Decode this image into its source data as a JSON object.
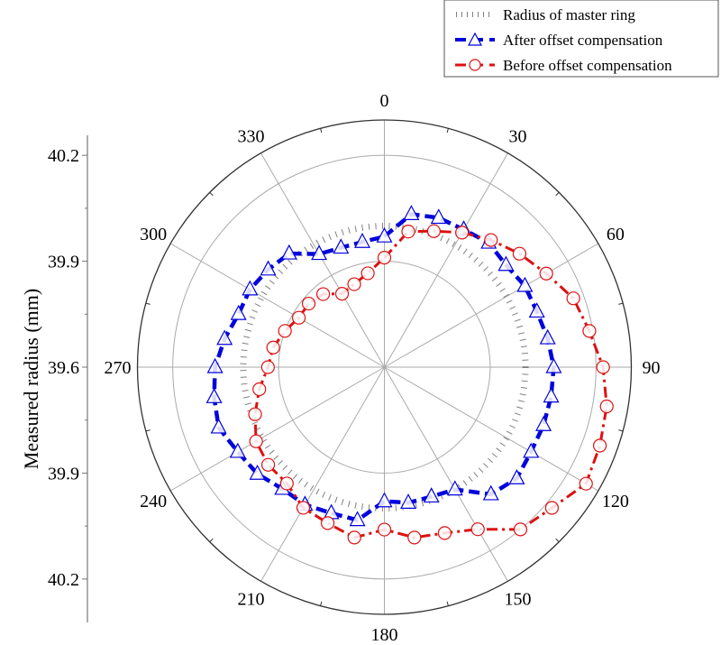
{
  "chart_data": {
    "type": "polar-line",
    "ylabel": "Measured radius (mm)",
    "radial_range": [
      39.6,
      40.3
    ],
    "radial_ticks": [
      39.6,
      39.9,
      40.2
    ],
    "radial_tick_labels": [
      "40.2",
      "39.9",
      "39.6",
      "39.9",
      "40.2"
    ],
    "angle_direction": "clockwise",
    "angle_zero": "top",
    "angle_ticks": [
      0,
      30,
      60,
      90,
      120,
      150,
      180,
      210,
      240,
      270,
      300,
      330
    ],
    "angle_tick_labels": [
      "0",
      "30",
      "60",
      "90",
      "120",
      "150",
      "180",
      "210",
      "240",
      "270",
      "300",
      "330"
    ],
    "grid": true,
    "legend_position": "top-right",
    "angles": [
      0,
      10,
      20,
      30,
      40,
      50,
      60,
      70,
      80,
      90,
      100,
      110,
      120,
      130,
      140,
      150,
      160,
      170,
      180,
      190,
      200,
      210,
      220,
      230,
      240,
      250,
      260,
      270,
      280,
      290,
      300,
      310,
      320,
      330,
      340,
      350
    ],
    "master_ring": {
      "name": "Radius of master ring",
      "value": 40.0,
      "color": "#808080",
      "style": "dotted"
    },
    "series": [
      {
        "name": "After offset compensation",
        "color": "#0000dd",
        "marker": "triangle",
        "style": "dashed",
        "values": [
          39.97,
          40.04,
          40.05,
          40.05,
          40.06,
          40.05,
          40.06,
          40.06,
          40.07,
          40.08,
          40.08,
          40.08,
          40.08,
          40.09,
          40.07,
          40.0,
          39.99,
          39.99,
          39.98,
          40.04,
          40.04,
          40.05,
          40.05,
          40.07,
          40.08,
          40.1,
          40.09,
          40.08,
          40.06,
          40.04,
          40.04,
          40.03,
          40.02,
          39.97,
          39.96,
          39.96
        ]
      },
      {
        "name": "Before offset compensation",
        "color": "#dd1111",
        "marker": "circle",
        "style": "dash-dot",
        "values": [
          39.91,
          39.99,
          40.01,
          40.04,
          40.07,
          40.1,
          40.13,
          40.17,
          40.19,
          40.22,
          40.24,
          40.25,
          40.26,
          40.22,
          40.2,
          40.13,
          40.1,
          40.09,
          40.06,
          40.09,
          40.07,
          40.06,
          40.03,
          40.03,
          40.02,
          39.99,
          39.96,
          39.93,
          39.92,
          39.9,
          39.88,
          39.88,
          39.87,
          39.84,
          39.85,
          39.87
        ]
      }
    ]
  }
}
